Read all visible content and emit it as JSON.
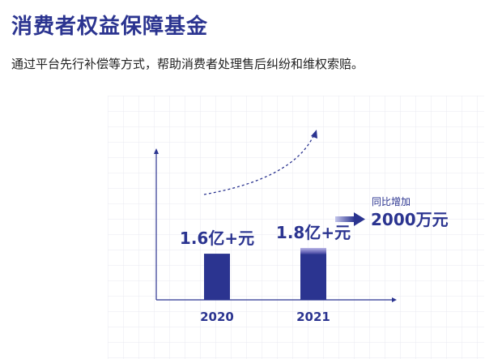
{
  "header": {
    "title": "消费者权益保障基金",
    "subtitle": "通过平台先行补偿等方式，帮助消费者处理售后纠纷和维权索赔。"
  },
  "chart_data": {
    "type": "bar",
    "categories": [
      "2020",
      "2021"
    ],
    "values": [
      1.6,
      1.8
    ],
    "value_labels": [
      "1.6亿+元",
      "1.8亿+元"
    ],
    "unit": "亿元",
    "increase": {
      "label": "同比增加",
      "value": 2000,
      "value_label": "2000万元"
    },
    "ylim": [
      0,
      5.2
    ],
    "grid": true,
    "colors": {
      "bar": "#2b3490",
      "bar_increase_top": "#9a95d6",
      "accent": "#2b3490"
    }
  }
}
